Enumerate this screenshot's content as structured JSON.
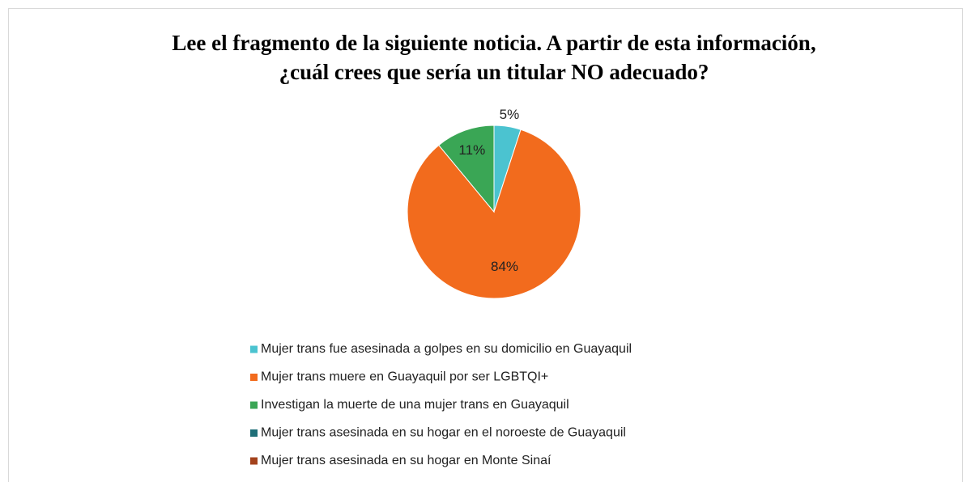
{
  "chart_data": {
    "type": "pie",
    "title": "Lee el fragmento de la siguiente noticia. A partir de esta información,",
    "subtitle": "¿cuál crees que sería un titular NO adecuado?",
    "categories": [
      "Mujer trans fue asesinada a golpes en su domicilio en Guayaquil",
      "Mujer trans muere en Guayaquil por ser LGBTQI+",
      "Investigan la muerte de una mujer trans en Guayaquil",
      "Mujer trans asesinada en su hogar en el noroeste de Guayaquil",
      "Mujer trans asesinada en su hogar en Monte Sinaí"
    ],
    "values": [
      5,
      84,
      11,
      0,
      0
    ],
    "value_labels": [
      "5%",
      "84%",
      "11%",
      null,
      null
    ],
    "colors": [
      "#4bc3d0",
      "#f26b1d",
      "#3aa655",
      "#1f6f78",
      "#a3421c"
    ],
    "legend": "bottom"
  }
}
